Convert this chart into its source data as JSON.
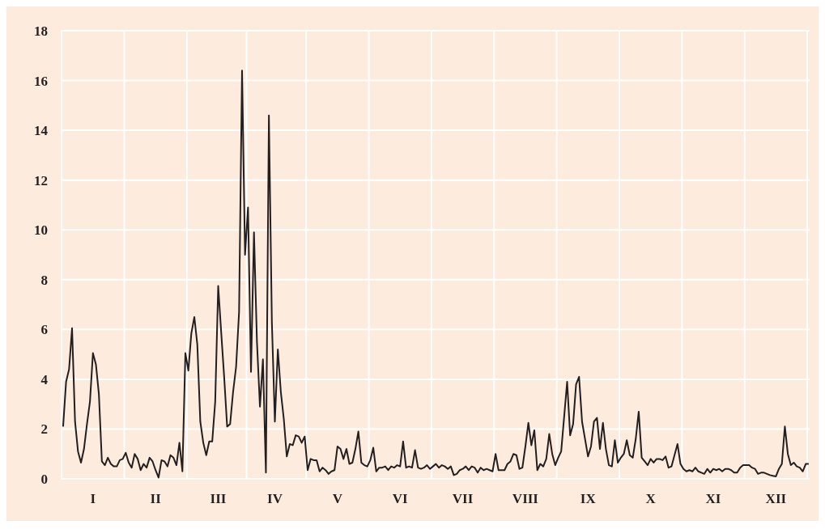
{
  "chart_data": {
    "type": "line",
    "categories": [
      null,
      null,
      null,
      null,
      null,
      null,
      null,
      null,
      null,
      null,
      "I",
      null,
      null,
      null,
      null,
      null,
      null,
      null,
      null,
      null,
      null,
      null,
      null,
      null,
      null,
      null,
      null,
      null,
      null,
      null,
      null,
      "II",
      null,
      null,
      null,
      null,
      null,
      null,
      null,
      null,
      null,
      null,
      null,
      null,
      null,
      null,
      null,
      null,
      null,
      null,
      null,
      null,
      "III",
      null,
      null,
      null,
      null,
      null,
      null,
      null,
      null,
      null,
      null,
      null,
      null,
      null,
      null,
      null,
      null,
      null,
      null,
      "IV",
      null,
      null,
      null,
      null,
      null,
      null,
      null,
      null,
      null,
      null,
      null,
      null,
      null,
      null,
      null,
      null,
      null,
      null,
      null,
      null,
      "V",
      null,
      null,
      null,
      null,
      null,
      null,
      null,
      null,
      null,
      null,
      null,
      null,
      null,
      null,
      null,
      null,
      null,
      null,
      null,
      null,
      "VI",
      null,
      null,
      null,
      null,
      null,
      null,
      null,
      null,
      null,
      null,
      null,
      null,
      null,
      null,
      null,
      null,
      null,
      null,
      null,
      null,
      "VII",
      null,
      null,
      null,
      null,
      null,
      null,
      null,
      null,
      null,
      null,
      null,
      null,
      null,
      null,
      null,
      null,
      null,
      null,
      null,
      null,
      "VIII",
      null,
      null,
      null,
      null,
      null,
      null,
      null,
      null,
      null,
      null,
      null,
      null,
      null,
      null,
      null,
      null,
      null,
      null,
      null,
      null,
      "IX",
      null,
      null,
      null,
      null,
      null,
      null,
      null,
      null,
      null,
      null,
      null,
      null,
      null,
      null,
      null,
      null,
      null,
      null,
      null,
      null,
      "X",
      null,
      null,
      null,
      null,
      null,
      null,
      null,
      null,
      null,
      null,
      null,
      null,
      null,
      null,
      null,
      null,
      null,
      null,
      null,
      null,
      "XI",
      null,
      null,
      null,
      null,
      null,
      null,
      null,
      null,
      null,
      null,
      null,
      null,
      null,
      null,
      null,
      null,
      null,
      null,
      null,
      null,
      "XII",
      null,
      null,
      null,
      null,
      null,
      null,
      null,
      null,
      null,
      null,
      null
    ],
    "ylim": [
      0,
      18
    ],
    "yticks": [
      0,
      2,
      4,
      6,
      8,
      10,
      12,
      14,
      16,
      18
    ],
    "grid": true,
    "marker": "none",
    "line_style": "solid",
    "series": [
      {
        "color": "#231f20",
        "values": [
          2.1,
          3.9,
          4.4,
          6.05,
          2.3,
          1.1,
          0.65,
          1.2,
          2.2,
          3.1,
          5.05,
          4.6,
          3.4,
          0.7,
          0.55,
          0.85,
          0.6,
          0.5,
          0.5,
          0.75,
          0.8,
          1.05,
          0.65,
          0.45,
          1.0,
          0.8,
          0.35,
          0.6,
          0.45,
          0.85,
          0.7,
          0.35,
          0.05,
          0.75,
          0.7,
          0.5,
          0.95,
          0.85,
          0.55,
          1.45,
          0.3,
          5.05,
          4.35,
          5.85,
          6.5,
          5.4,
          2.3,
          1.45,
          0.95,
          1.5,
          1.5,
          3.1,
          7.75,
          5.9,
          4.1,
          2.1,
          2.2,
          3.5,
          4.5,
          6.7,
          16.4,
          9.0,
          10.9,
          4.3,
          9.9,
          5.5,
          2.9,
          4.8,
          0.25,
          14.6,
          6.3,
          2.3,
          5.2,
          3.5,
          2.4,
          0.9,
          1.4,
          1.35,
          1.75,
          1.7,
          1.45,
          1.7,
          0.35,
          0.8,
          0.75,
          0.75,
          0.3,
          0.45,
          0.35,
          0.2,
          0.3,
          0.35,
          1.3,
          1.2,
          0.8,
          1.2,
          0.6,
          0.65,
          1.2,
          1.9,
          0.65,
          0.55,
          0.5,
          0.75,
          1.25,
          0.3,
          0.45,
          0.45,
          0.5,
          0.35,
          0.5,
          0.45,
          0.55,
          0.5,
          1.5,
          0.45,
          0.5,
          0.45,
          1.15,
          0.45,
          0.4,
          0.45,
          0.55,
          0.4,
          0.5,
          0.6,
          0.45,
          0.55,
          0.5,
          0.4,
          0.5,
          0.15,
          0.2,
          0.35,
          0.4,
          0.5,
          0.35,
          0.5,
          0.45,
          0.25,
          0.45,
          0.35,
          0.4,
          0.35,
          0.3,
          1.0,
          0.35,
          0.35,
          0.35,
          0.6,
          0.7,
          1.0,
          0.95,
          0.4,
          0.45,
          1.3,
          2.25,
          1.35,
          1.95,
          0.35,
          0.6,
          0.5,
          0.8,
          1.8,
          1.0,
          0.55,
          0.85,
          1.1,
          2.5,
          3.9,
          1.75,
          2.2,
          3.8,
          4.1,
          2.3,
          1.6,
          0.9,
          1.3,
          2.3,
          2.45,
          1.2,
          2.25,
          1.2,
          0.55,
          0.5,
          1.55,
          0.65,
          0.85,
          1.0,
          1.55,
          0.95,
          0.85,
          1.6,
          2.7,
          0.85,
          0.7,
          0.55,
          0.8,
          0.65,
          0.8,
          0.8,
          0.75,
          0.9,
          0.45,
          0.5,
          0.95,
          1.4,
          0.6,
          0.4,
          0.3,
          0.35,
          0.3,
          0.45,
          0.3,
          0.25,
          0.2,
          0.4,
          0.25,
          0.4,
          0.35,
          0.4,
          0.3,
          0.4,
          0.4,
          0.35,
          0.25,
          0.25,
          0.45,
          0.55,
          0.55,
          0.55,
          0.45,
          0.4,
          0.2,
          0.25,
          0.25,
          0.2,
          0.15,
          0.12,
          0.1,
          0.4,
          0.6,
          2.1,
          1.0,
          0.55,
          0.65,
          0.5,
          0.45,
          0.3,
          0.6,
          0.6
        ]
      }
    ]
  }
}
